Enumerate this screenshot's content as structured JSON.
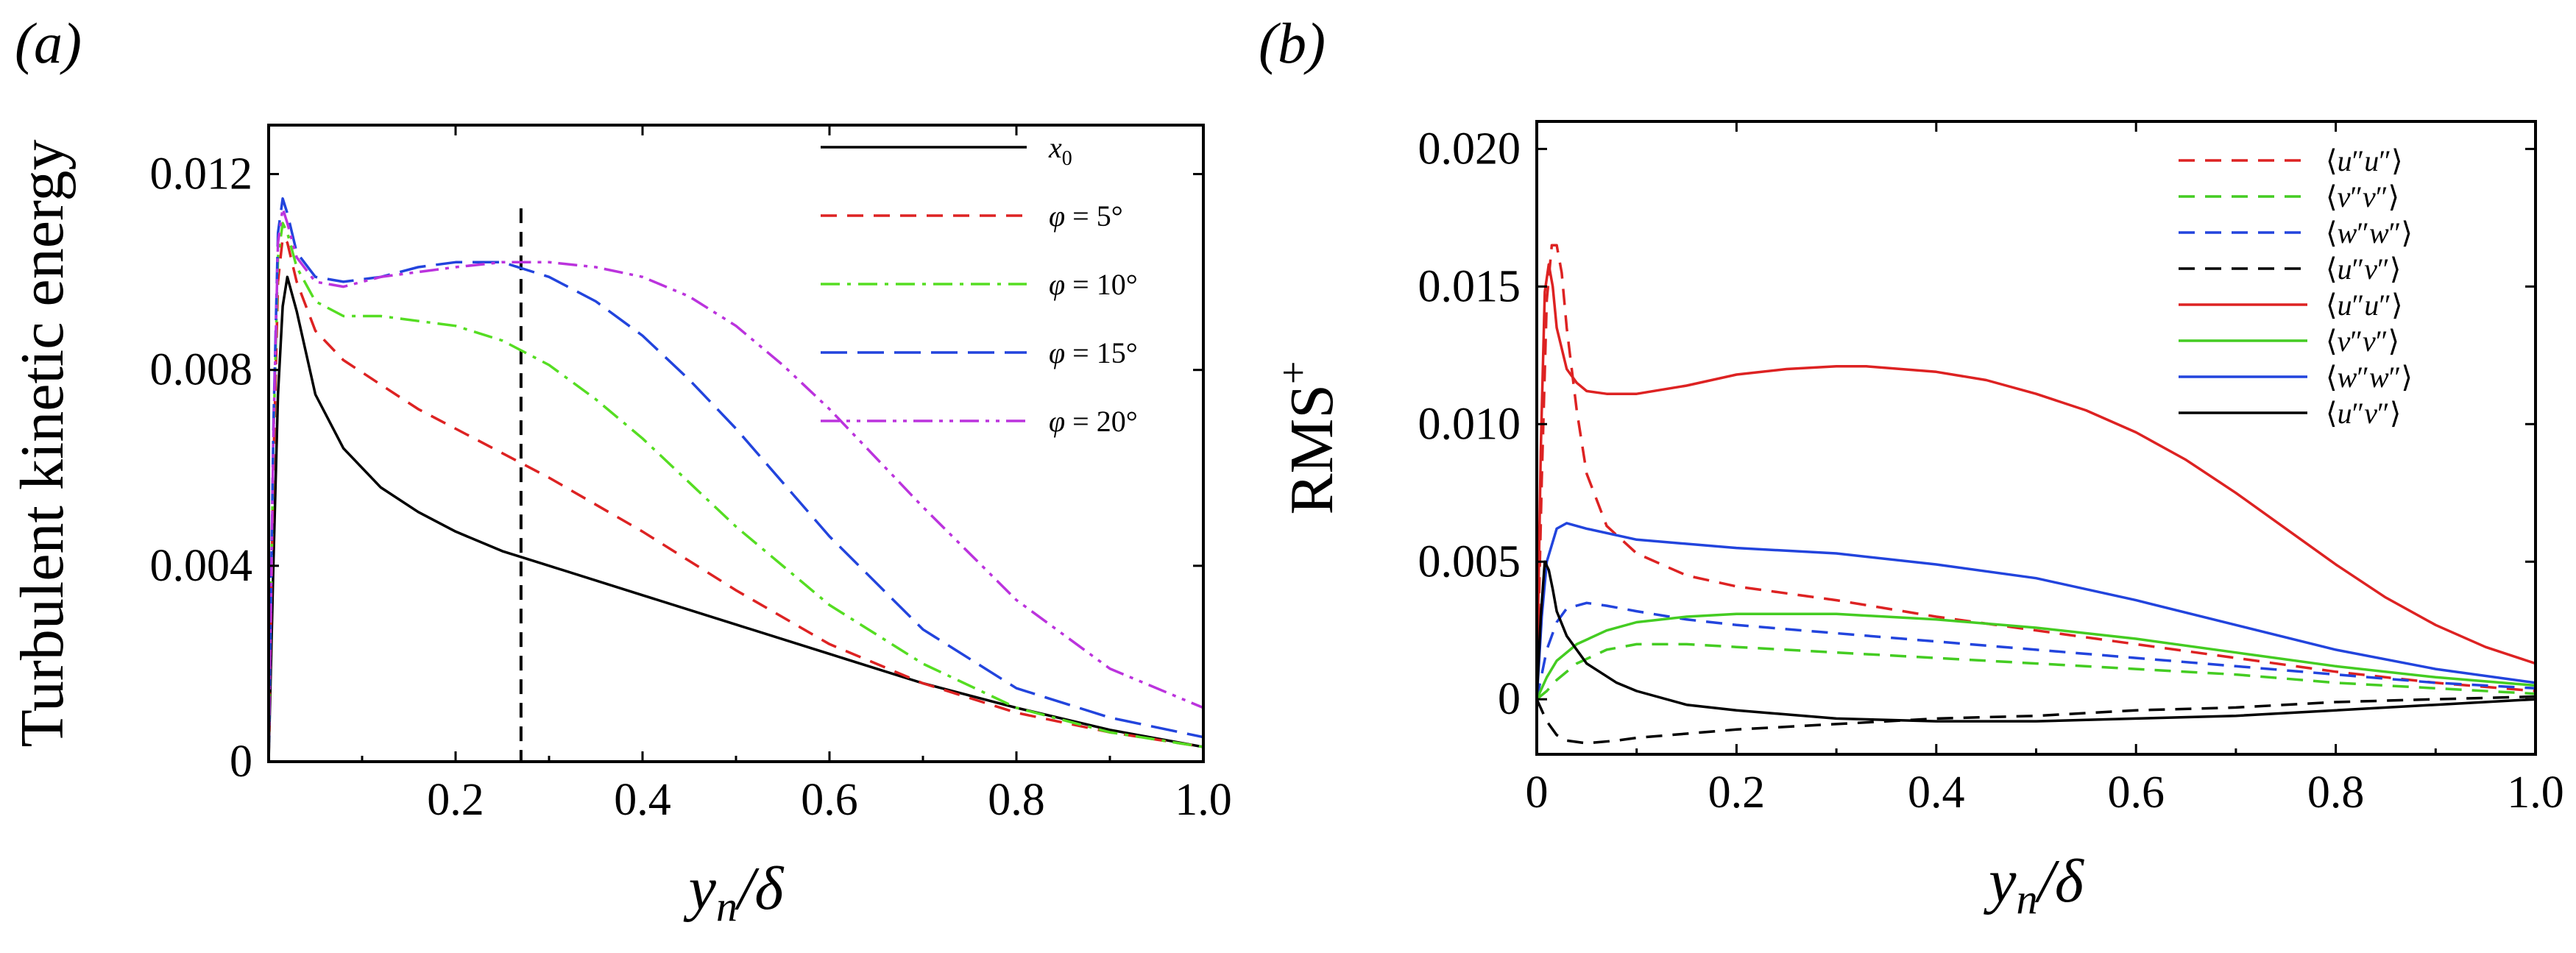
{
  "chart_data": [
    {
      "panel_label": "(a)",
      "type": "line",
      "ylabel": "Turbulent kinetic energy",
      "xlabel": "y_n/δ",
      "xlim": [
        0,
        1.0
      ],
      "ylim": [
        0,
        0.013
      ],
      "xticks": [
        "0.2",
        "0.4",
        "0.6",
        "0.8",
        "1.0"
      ],
      "xtick_values": [
        0.2,
        0.4,
        0.6,
        0.8,
        1.0
      ],
      "yticks": [
        "0",
        "0.004",
        "0.008",
        "0.012"
      ],
      "ytick_values": [
        0,
        0.004,
        0.008,
        0.012
      ],
      "legend_position": "top-right",
      "vline": {
        "x": 0.27,
        "ymax": 0.0113,
        "color": "#000000",
        "dash": "dashed"
      },
      "series": [
        {
          "name": "x0",
          "color": "#000000",
          "dash": "solid",
          "x": [
            0,
            0.005,
            0.01,
            0.015,
            0.02,
            0.03,
            0.05,
            0.08,
            0.12,
            0.16,
            0.2,
            0.25,
            0.3,
            0.4,
            0.5,
            0.6,
            0.7,
            0.8,
            0.9,
            1.0
          ],
          "y": [
            0,
            0.004,
            0.0075,
            0.0093,
            0.0099,
            0.0092,
            0.0075,
            0.0064,
            0.0056,
            0.0051,
            0.0047,
            0.0043,
            0.004,
            0.0034,
            0.0028,
            0.0022,
            0.0016,
            0.0011,
            0.00065,
            0.0003
          ]
        },
        {
          "name": "φ = 5°",
          "color": "#dd2222",
          "dash": "dashed",
          "x": [
            0,
            0.005,
            0.01,
            0.015,
            0.02,
            0.03,
            0.05,
            0.08,
            0.12,
            0.16,
            0.2,
            0.25,
            0.3,
            0.4,
            0.5,
            0.6,
            0.7,
            0.8,
            0.9,
            1.0
          ],
          "y": [
            0,
            0.006,
            0.0098,
            0.0107,
            0.0106,
            0.0098,
            0.0088,
            0.0082,
            0.0077,
            0.0072,
            0.0068,
            0.0063,
            0.0058,
            0.0047,
            0.0035,
            0.0024,
            0.0016,
            0.001,
            0.0006,
            0.0003
          ]
        },
        {
          "name": "φ = 10°",
          "color": "#55dd22",
          "dash": "dashdot",
          "x": [
            0,
            0.005,
            0.01,
            0.015,
            0.02,
            0.03,
            0.05,
            0.08,
            0.12,
            0.16,
            0.2,
            0.25,
            0.3,
            0.35,
            0.4,
            0.45,
            0.5,
            0.6,
            0.7,
            0.8,
            0.9,
            1.0
          ],
          "y": [
            0,
            0.0065,
            0.0103,
            0.011,
            0.0108,
            0.0101,
            0.0094,
            0.0091,
            0.0091,
            0.009,
            0.0089,
            0.0086,
            0.0081,
            0.0074,
            0.0066,
            0.0057,
            0.0048,
            0.0032,
            0.002,
            0.0011,
            0.0006,
            0.0003
          ]
        },
        {
          "name": "φ = 15°",
          "color": "#2244dd",
          "dash": "longdash",
          "x": [
            0,
            0.005,
            0.01,
            0.015,
            0.02,
            0.03,
            0.05,
            0.08,
            0.12,
            0.16,
            0.2,
            0.25,
            0.3,
            0.35,
            0.4,
            0.45,
            0.5,
            0.55,
            0.6,
            0.7,
            0.8,
            0.9,
            1.0
          ],
          "y": [
            0,
            0.0068,
            0.0108,
            0.0115,
            0.0112,
            0.0104,
            0.0099,
            0.0098,
            0.0099,
            0.0101,
            0.0102,
            0.0102,
            0.0099,
            0.0094,
            0.0087,
            0.0078,
            0.0068,
            0.0057,
            0.0046,
            0.0027,
            0.0015,
            0.0009,
            0.0005
          ]
        },
        {
          "name": "φ = 20°",
          "color": "#bb33dd",
          "dash": "dashdotdot",
          "x": [
            0,
            0.005,
            0.01,
            0.015,
            0.02,
            0.03,
            0.05,
            0.08,
            0.12,
            0.16,
            0.2,
            0.25,
            0.3,
            0.35,
            0.4,
            0.45,
            0.5,
            0.55,
            0.6,
            0.7,
            0.8,
            0.9,
            1.0
          ],
          "y": [
            0,
            0.0066,
            0.0106,
            0.0113,
            0.011,
            0.0103,
            0.0098,
            0.0097,
            0.0099,
            0.01,
            0.0101,
            0.0102,
            0.0102,
            0.0101,
            0.0099,
            0.0095,
            0.0089,
            0.0081,
            0.0072,
            0.0052,
            0.0033,
            0.0019,
            0.0011
          ]
        }
      ]
    },
    {
      "panel_label": "(b)",
      "type": "line",
      "ylabel": "RMS+",
      "xlabel": "y_n/δ",
      "xlim": [
        0,
        1.0
      ],
      "ylim": [
        -0.002,
        0.021
      ],
      "xticks": [
        "0",
        "0.2",
        "0.4",
        "0.6",
        "0.8",
        "1.0"
      ],
      "xtick_values": [
        0,
        0.2,
        0.4,
        0.6,
        0.8,
        1.0
      ],
      "yticks": [
        "0",
        "0.005",
        "0.010",
        "0.015",
        "0.020"
      ],
      "ytick_values": [
        0,
        0.005,
        0.01,
        0.015,
        0.02
      ],
      "legend_position": "top-right",
      "series": [
        {
          "name": "⟨u″u″⟩",
          "color": "#dd2222",
          "dash": "dashed",
          "x": [
            0,
            0.005,
            0.01,
            0.015,
            0.02,
            0.025,
            0.03,
            0.04,
            0.05,
            0.07,
            0.1,
            0.15,
            0.2,
            0.3,
            0.4,
            0.5,
            0.6,
            0.7,
            0.8,
            0.9,
            1.0
          ],
          "y": [
            0,
            0.008,
            0.0145,
            0.0165,
            0.0165,
            0.0155,
            0.0135,
            0.0105,
            0.0082,
            0.0063,
            0.0053,
            0.0045,
            0.0041,
            0.0036,
            0.003,
            0.0025,
            0.002,
            0.0015,
            0.001,
            0.0006,
            0.0003
          ]
        },
        {
          "name": "⟨v″v″⟩",
          "color": "#44cc22",
          "dash": "dashed",
          "x": [
            0,
            0.01,
            0.02,
            0.04,
            0.07,
            0.1,
            0.15,
            0.2,
            0.3,
            0.4,
            0.5,
            0.6,
            0.7,
            0.8,
            0.9,
            1.0
          ],
          "y": [
            0,
            0.0003,
            0.0007,
            0.0013,
            0.0018,
            0.002,
            0.002,
            0.0019,
            0.0017,
            0.0015,
            0.0013,
            0.0011,
            0.0009,
            0.0006,
            0.0004,
            0.0002
          ]
        },
        {
          "name": "⟨w″w″⟩",
          "color": "#2244dd",
          "dash": "dashed",
          "x": [
            0,
            0.01,
            0.02,
            0.03,
            0.05,
            0.07,
            0.1,
            0.15,
            0.2,
            0.3,
            0.4,
            0.5,
            0.6,
            0.7,
            0.8,
            0.9,
            1.0
          ],
          "y": [
            0,
            0.0018,
            0.0028,
            0.0033,
            0.0035,
            0.0034,
            0.0032,
            0.0029,
            0.0027,
            0.0024,
            0.0021,
            0.0018,
            0.0015,
            0.0012,
            0.0009,
            0.0006,
            0.0004
          ]
        },
        {
          "name": "⟨u″v″⟩",
          "color": "#000000",
          "dash": "dashed",
          "x": [
            0,
            0.01,
            0.02,
            0.03,
            0.05,
            0.08,
            0.1,
            0.2,
            0.3,
            0.4,
            0.5,
            0.6,
            0.7,
            0.8,
            0.9,
            1.0
          ],
          "y": [
            0,
            -0.0008,
            -0.0013,
            -0.0015,
            -0.0016,
            -0.0015,
            -0.0014,
            -0.0011,
            -0.0009,
            -0.0007,
            -0.0006,
            -0.0004,
            -0.0003,
            -0.0001,
            0.0,
            0.0001
          ]
        },
        {
          "name": "⟨u″u″⟩",
          "color": "#dd2222",
          "dash": "solid",
          "x": [
            0,
            0.004,
            0.008,
            0.012,
            0.016,
            0.02,
            0.03,
            0.04,
            0.05,
            0.07,
            0.1,
            0.15,
            0.2,
            0.25,
            0.3,
            0.33,
            0.4,
            0.45,
            0.5,
            0.55,
            0.6,
            0.65,
            0.7,
            0.75,
            0.8,
            0.85,
            0.9,
            0.95,
            1.0
          ],
          "y": [
            0,
            0.009,
            0.0148,
            0.0158,
            0.015,
            0.0135,
            0.012,
            0.0115,
            0.0112,
            0.0111,
            0.0111,
            0.0114,
            0.0118,
            0.012,
            0.0121,
            0.0121,
            0.0119,
            0.0116,
            0.0111,
            0.0105,
            0.0097,
            0.0087,
            0.0075,
            0.0062,
            0.0049,
            0.0037,
            0.0027,
            0.0019,
            0.0013
          ]
        },
        {
          "name": "⟨v″v″⟩",
          "color": "#44cc22",
          "dash": "solid",
          "x": [
            0,
            0.01,
            0.02,
            0.04,
            0.07,
            0.1,
            0.15,
            0.2,
            0.25,
            0.3,
            0.4,
            0.5,
            0.6,
            0.7,
            0.8,
            0.9,
            1.0
          ],
          "y": [
            0,
            0.0008,
            0.0014,
            0.002,
            0.0025,
            0.0028,
            0.003,
            0.0031,
            0.0031,
            0.0031,
            0.0029,
            0.0026,
            0.0022,
            0.0017,
            0.0012,
            0.0008,
            0.0005
          ]
        },
        {
          "name": "⟨w″w″⟩",
          "color": "#2244dd",
          "dash": "solid",
          "x": [
            0,
            0.005,
            0.01,
            0.02,
            0.03,
            0.05,
            0.1,
            0.2,
            0.3,
            0.4,
            0.5,
            0.6,
            0.7,
            0.8,
            0.9,
            1.0
          ],
          "y": [
            0,
            0.003,
            0.005,
            0.0062,
            0.0064,
            0.0062,
            0.0058,
            0.0055,
            0.0053,
            0.0049,
            0.0044,
            0.0036,
            0.0027,
            0.0018,
            0.0011,
            0.0006
          ]
        },
        {
          "name": "⟨u″v″⟩",
          "color": "#000000",
          "dash": "solid",
          "x": [
            0,
            0.004,
            0.008,
            0.012,
            0.016,
            0.02,
            0.03,
            0.05,
            0.08,
            0.1,
            0.15,
            0.2,
            0.3,
            0.4,
            0.5,
            0.6,
            0.7,
            0.8,
            0.9,
            1.0
          ],
          "y": [
            0,
            0.003,
            0.005,
            0.0047,
            0.004,
            0.0032,
            0.0023,
            0.0013,
            0.0006,
            0.0003,
            -0.0002,
            -0.0004,
            -0.0007,
            -0.0008,
            -0.0008,
            -0.0007,
            -0.0006,
            -0.0004,
            -0.0002,
            0.0
          ]
        }
      ]
    }
  ]
}
